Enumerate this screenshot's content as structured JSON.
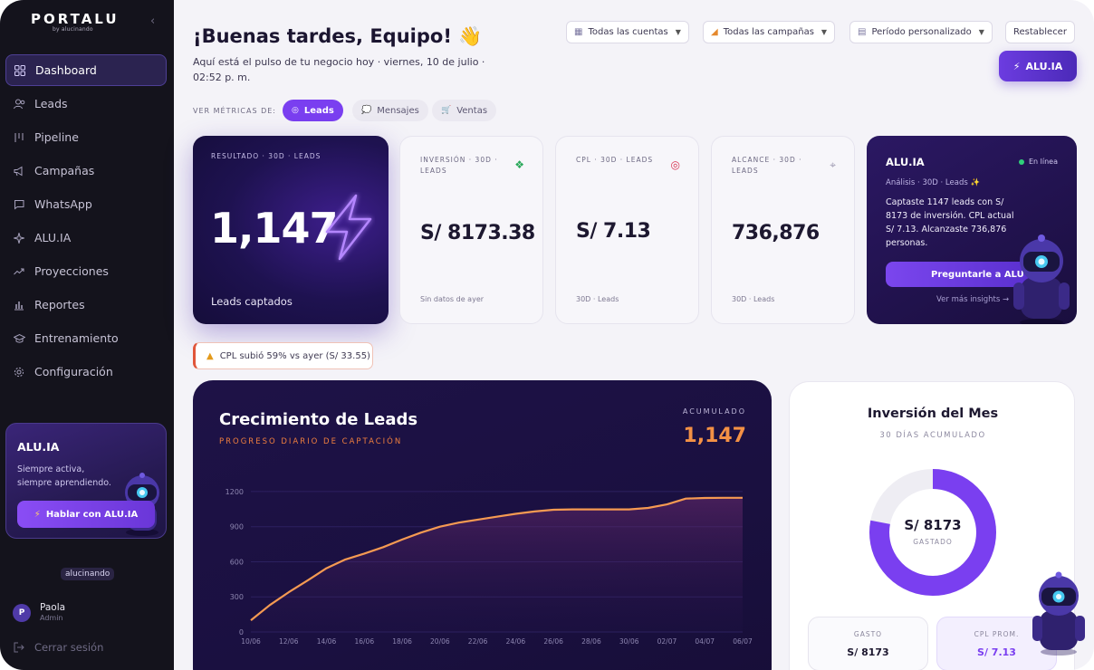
{
  "sidebar": {
    "brand": "PORTALU",
    "brand_sub": "by alucinando",
    "items": [
      {
        "label": "Dashboard",
        "icon": "grid-icon"
      },
      {
        "label": "Leads",
        "icon": "users-icon"
      },
      {
        "label": "Pipeline",
        "icon": "pipeline-icon"
      },
      {
        "label": "Campañas",
        "icon": "megaphone-icon"
      },
      {
        "label": "WhatsApp",
        "icon": "chat-icon"
      },
      {
        "label": "ALU.IA",
        "icon": "sparkle-icon"
      },
      {
        "label": "Proyecciones",
        "icon": "trend-icon"
      },
      {
        "label": "Reportes",
        "icon": "bar-chart-icon"
      },
      {
        "label": "Entrenamiento",
        "icon": "graduation-icon"
      },
      {
        "label": "Configuración",
        "icon": "gear-icon"
      }
    ],
    "promo": {
      "title": "ALU.IA",
      "desc": "Siempre activa, siempre aprendiendo.",
      "button": "Hablar con ALU.IA"
    },
    "logo": "alucinando",
    "user": {
      "initial": "P",
      "name": "Paola",
      "role": "Admin"
    },
    "logout": "Cerrar sesión"
  },
  "header": {
    "greeting": "¡Buenas tardes, Equipo! 👋",
    "subtitle": "Aquí está el pulso de tu negocio hoy · viernes, 10 de julio · 02:52 p. m.",
    "filters": {
      "accounts": "Todas las cuentas",
      "campaigns": "Todas las campañas",
      "period": "Período personalizado",
      "reset": "Restablecer"
    },
    "ai_button": "ALU.IA",
    "metrics_label": "VER MÉTRICAS DE:",
    "chips": [
      "Leads",
      "Mensajes",
      "Ventas"
    ]
  },
  "kpis": {
    "hero": {
      "label": "RESULTADO · 30D · LEADS",
      "value": "1,147",
      "caption": "Leads captados"
    },
    "investment": {
      "label": "INVERSIÓN · 30D · LEADS",
      "value": "S/ 8173.38",
      "foot": "Sin datos de ayer"
    },
    "cpl": {
      "label": "CPL · 30D · LEADS",
      "value": "S/ 7.13",
      "foot": "30D · Leads"
    },
    "reach": {
      "label": "ALCANCE · 30D · LEADS",
      "value": "736,876",
      "foot": "30D · Leads"
    }
  },
  "ai_card": {
    "title": "ALU.IA",
    "status": "En línea",
    "sub": "Análisis · 30D · Leads ✨",
    "text": "Captaste 1147 leads con S/ 8173 de inversión. CPL actual S/ 7.13. Alcanzaste 736,876 personas.",
    "button": "Preguntarle a ALU",
    "more": "Ver más insights →"
  },
  "alert": "CPL subió 59% vs ayer (S/ 33.55)",
  "growth": {
    "title": "Crecimiento de Leads",
    "subtitle": "PROGRESO DIARIO DE CAPTACIÓN",
    "acc_label": "ACUMULADO",
    "acc_value": "1,147"
  },
  "chart_data": {
    "type": "area",
    "title": "Crecimiento de Leads",
    "x": [
      "10/06",
      "11/06",
      "12/06",
      "13/06",
      "14/06",
      "15/06",
      "16/06",
      "17/06",
      "18/06",
      "19/06",
      "20/06",
      "21/06",
      "22/06",
      "23/06",
      "24/06",
      "25/06",
      "26/06",
      "27/06",
      "28/06",
      "29/06",
      "30/06",
      "01/07",
      "02/07",
      "03/07",
      "04/07",
      "05/07",
      "06/07"
    ],
    "xticks": [
      "10/06",
      "12/06",
      "14/06",
      "16/06",
      "18/06",
      "20/06",
      "22/06",
      "24/06",
      "26/06",
      "28/06",
      "30/06",
      "02/07",
      "04/07",
      "06/07"
    ],
    "yticks": [
      0,
      300,
      600,
      900,
      1200
    ],
    "ylim": [
      0,
      1300
    ],
    "series": [
      {
        "values": [
          100,
          230,
          340,
          440,
          545,
          620,
          670,
          725,
          790,
          850,
          900,
          935,
          960,
          985,
          1010,
          1030,
          1045,
          1048,
          1048,
          1048,
          1048,
          1060,
          1090,
          1140,
          1145,
          1147,
          1147
        ]
      }
    ],
    "color": "#f59a52"
  },
  "investment_card": {
    "title": "Inversión del Mes",
    "subtitle": "30 DÍAS ACUMULADO",
    "donut_value": "S/ 8173",
    "donut_label": "GASTADO",
    "donut_fraction": 0.78,
    "spend_label": "GASTO",
    "spend_value": "S/ 8173",
    "cpl_label": "CPL PROM.",
    "cpl_value": "S/ 7.13"
  }
}
